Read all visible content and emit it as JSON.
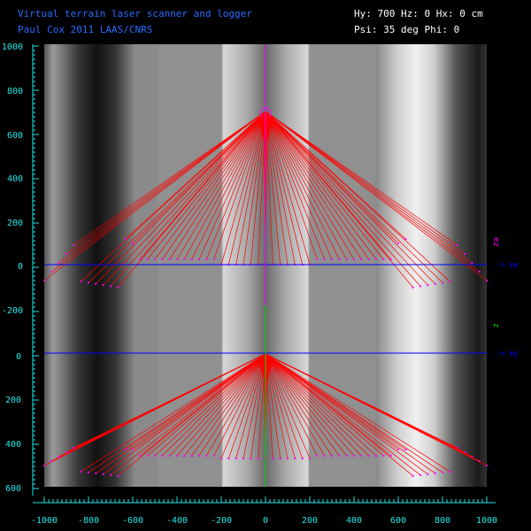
{
  "header": {
    "title": "Virtual terrain laser scanner and logger",
    "credit": "Paul Cox 2011 LAAS/CNRS",
    "hy_hz_hx": "Hy: 700 Hz: 0 Hx: 0 cm",
    "psi_phi": "Psi: 35 deg Phi: 0"
  },
  "axes": {
    "left_upper_ticks": [
      "1000",
      "800",
      "600",
      "400",
      "200",
      "0",
      "-200"
    ],
    "left_lower_ticks": [
      "0",
      "200",
      "400",
      "600"
    ],
    "bottom_ticks": [
      "-1000",
      "-800",
      "-600",
      "-400",
      "-200",
      "0",
      "200",
      "400",
      "600",
      "800",
      "1000"
    ],
    "x_axis_label": "ex",
    "y_axis_label": "ey",
    "upper_vertical_label": "ez",
    "lower_vertical_label": "z"
  },
  "colors": {
    "background": "#000000",
    "axis": "#22e5e5",
    "ray": "#ff0000",
    "hit": "#ff00ff",
    "horizon": "#0000ff",
    "laser_axis_upper": "#ff00ff",
    "laser_axis_lower": "#00dd00",
    "title": "#2a6cff",
    "status": "#ffffff"
  },
  "scanner": {
    "height_cm": 700,
    "psi_deg": 35,
    "phi_deg": 0
  }
}
